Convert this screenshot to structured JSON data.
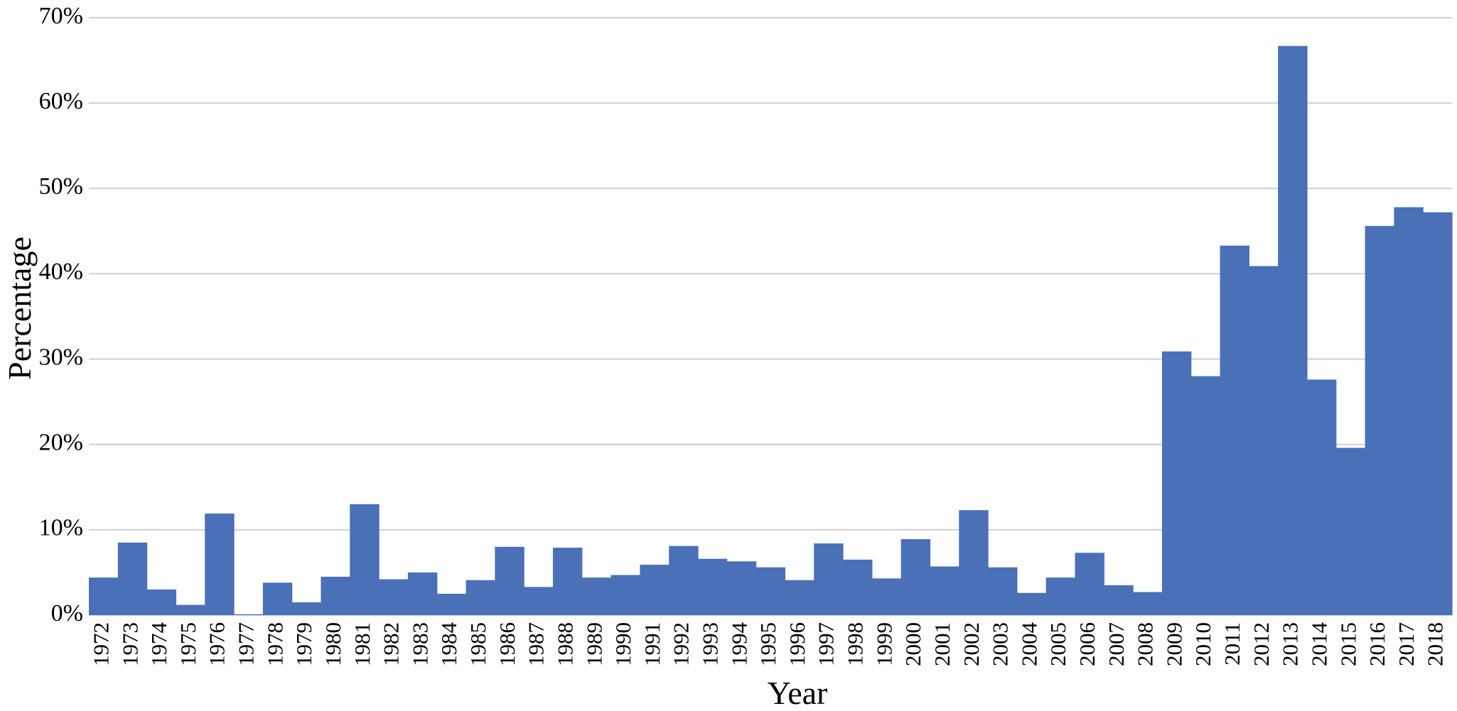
{
  "chart_data": {
    "type": "bar",
    "title": "",
    "xlabel": "Year",
    "ylabel": "Percentage",
    "ylim": [
      0,
      70
    ],
    "y_ticks": [
      0,
      10,
      20,
      30,
      40,
      50,
      60,
      70
    ],
    "y_tick_labels": [
      "0%",
      "10%",
      "20%",
      "30%",
      "40%",
      "50%",
      "60%",
      "70%"
    ],
    "grid": true,
    "legend": "none",
    "bar_gap": 0,
    "categories": [
      "1972",
      "1973",
      "1974",
      "1975",
      "1976",
      "1977",
      "1978",
      "1979",
      "1980",
      "1981",
      "1982",
      "1983",
      "1984",
      "1985",
      "1986",
      "1987",
      "1988",
      "1989",
      "1990",
      "1991",
      "1992",
      "1993",
      "1994",
      "1995",
      "1996",
      "1997",
      "1998",
      "1999",
      "2000",
      "2001",
      "2002",
      "2003",
      "2004",
      "2005",
      "2006",
      "2007",
      "2008",
      "2009",
      "2010",
      "2011",
      "2012",
      "2013",
      "2014",
      "2015",
      "2016",
      "2017",
      "2018"
    ],
    "series": [
      {
        "color": "#4a70b7",
        "values": [
          4.4,
          8.5,
          3.0,
          1.2,
          11.9,
          0.1,
          3.8,
          1.5,
          4.5,
          13.0,
          4.2,
          5.0,
          2.5,
          4.1,
          8.0,
          3.3,
          7.9,
          4.4,
          4.7,
          5.9,
          8.1,
          6.6,
          6.3,
          5.6,
          4.1,
          8.4,
          6.5,
          4.3,
          8.9,
          5.7,
          12.3,
          5.6,
          2.6,
          4.4,
          7.3,
          3.5,
          2.7,
          30.9,
          28.0,
          43.3,
          40.9,
          66.7,
          27.6,
          19.6,
          45.6,
          47.8,
          47.2
        ]
      }
    ]
  }
}
